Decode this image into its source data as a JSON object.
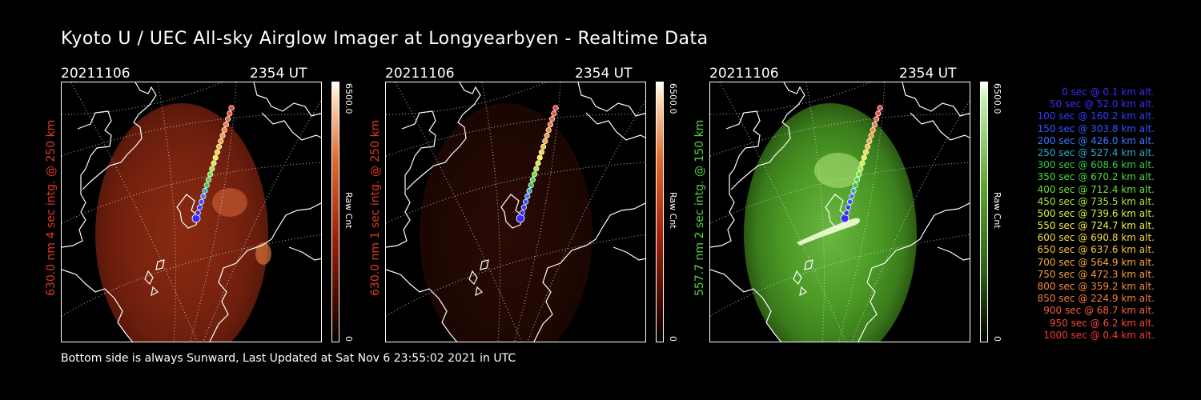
{
  "title": "Kyoto U / UEC All-sky Airglow Imager at Longyearbyen - Realtime Data",
  "footer": "Bottom side is always Sunward, Last Updated at Sat Nov  6 23:55:02 2021 in UTC",
  "panels": [
    {
      "date": "20211106",
      "time": "2354 UT",
      "ylabel": "630.0 nm 4 sec intg. @ 250 km",
      "label_color": "#e03a1e",
      "cbar_max": "6500.0",
      "cbar_min": "0",
      "cbar_unit": "Raw Cnt",
      "palette": "red",
      "brightness": "bright"
    },
    {
      "date": "20211106",
      "time": "2354 UT",
      "ylabel": "630.0 nm 1 sec intg. @ 250 km",
      "label_color": "#e03a1e",
      "cbar_max": "6500.0",
      "cbar_min": "0",
      "cbar_unit": "Raw Cnt",
      "palette": "red",
      "brightness": "dim"
    },
    {
      "date": "20211106",
      "time": "2354 UT",
      "ylabel": "557.7 nm 2 sec intg. @ 150 km",
      "label_color": "#4fd63a",
      "cbar_max": "6500.0",
      "cbar_min": "0",
      "cbar_unit": "Raw Cnt",
      "palette": "green",
      "brightness": "bright"
    }
  ],
  "legend": [
    {
      "text": "0 sec @   0.1 km alt.",
      "color": "#3a2cff"
    },
    {
      "text": "50 sec @  52.0 km alt.",
      "color": "#3a2cff"
    },
    {
      "text": "100 sec @ 160.2 km alt.",
      "color": "#2f3cff"
    },
    {
      "text": "150 sec @ 303.8 km alt.",
      "color": "#2f55ff"
    },
    {
      "text": "200 sec @ 426.0 km alt.",
      "color": "#3a78ff"
    },
    {
      "text": "250 sec @ 527.4 km alt.",
      "color": "#2fa6c8"
    },
    {
      "text": "300 sec @ 608.6 km alt.",
      "color": "#34c84a"
    },
    {
      "text": "350 sec @ 670.2 km alt.",
      "color": "#49d83a"
    },
    {
      "text": "400 sec @ 712.4 km alt.",
      "color": "#6fe03a"
    },
    {
      "text": "450 sec @ 735.5 km alt.",
      "color": "#a7e83a"
    },
    {
      "text": "500 sec @ 739.6 km alt.",
      "color": "#d8f03a"
    },
    {
      "text": "550 sec @ 724.7 km alt.",
      "color": "#f0f03a"
    },
    {
      "text": "600 sec @ 690.8 km alt.",
      "color": "#f5dc3a"
    },
    {
      "text": "650 sec @ 637.6 km alt.",
      "color": "#f5c23a"
    },
    {
      "text": "700 sec @ 564.9 km alt.",
      "color": "#f5a83a"
    },
    {
      "text": "750 sec @ 472.3 km alt.",
      "color": "#f59a3a"
    },
    {
      "text": "800 sec @ 359.2 km alt.",
      "color": "#f58a3a"
    },
    {
      "text": "850 sec @ 224.9 km alt.",
      "color": "#f57a3a"
    },
    {
      "text": "900 sec @  68.7 km alt.",
      "color": "#f5603a"
    },
    {
      "text": "950 sec @   6.2 km alt.",
      "color": "#f54a3a"
    },
    {
      "text": "1000 sec @   0.4 km alt.",
      "color": "#f5363a"
    }
  ]
}
